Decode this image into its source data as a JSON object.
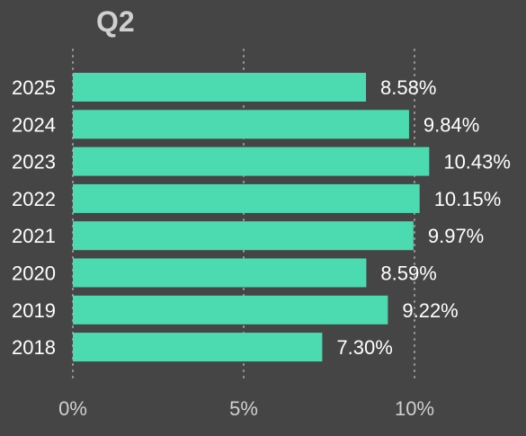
{
  "colors": {
    "background": "#454545",
    "bar": "#4cdbb0",
    "label_text": "#ffffff",
    "tick_text": "#cfcfcf",
    "title_text": "#cfcfcf",
    "grid": "#9a9a9a"
  },
  "chart_data": {
    "type": "bar",
    "orientation": "horizontal",
    "title": "Q2",
    "categories": [
      "2025",
      "2024",
      "2023",
      "2022",
      "2021",
      "2020",
      "2019",
      "2018"
    ],
    "values": [
      8.58,
      9.84,
      10.43,
      10.15,
      9.97,
      8.59,
      9.22,
      7.3
    ],
    "value_labels": [
      "8.58%",
      "9.84%",
      "10.43%",
      "10.15%",
      "9.97%",
      "8.59%",
      "9.22%",
      "7.30%"
    ],
    "xlim": [
      0,
      10
    ],
    "xticks": [
      0,
      5,
      10
    ],
    "xtick_labels": [
      "0%",
      "5%",
      "10%"
    ],
    "grid": "vertical dotted",
    "legend": "none"
  }
}
